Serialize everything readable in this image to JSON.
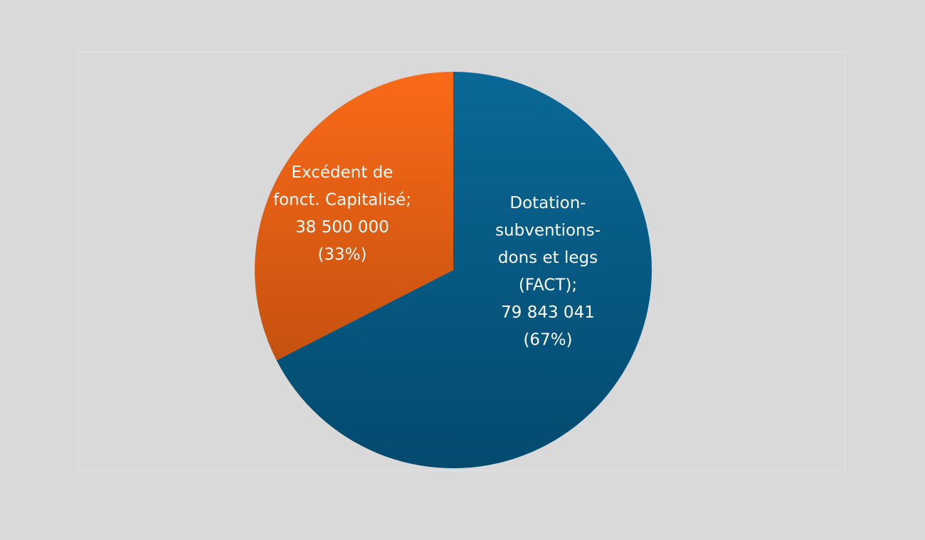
{
  "chart_data": {
    "type": "pie",
    "title": "",
    "slices": [
      {
        "label_lines": [
          "Dotation-",
          "subventions-",
          "dons et legs",
          "(FACT);",
          "79 843 041",
          "(67%)"
        ],
        "category": "Dotation-subventions-dons et legs (FACT)",
        "value": 79843041,
        "percent": 67,
        "color_top": "#0a6896",
        "color_bottom": "#034a6e"
      },
      {
        "label_lines": [
          "Excédent de",
          "fonct. Capitalisé;",
          "38 500 000",
          "(33%)"
        ],
        "category": "Excédent de fonct. Capitalisé",
        "value": 38500000,
        "percent": 33,
        "color_top": "#fa6a18",
        "color_bottom": "#c6510f"
      }
    ],
    "start_angle_deg": 0,
    "direction": "clockwise",
    "legend": "none",
    "colors": {
      "background": "#d9d9d9",
      "plot_border": "#e1e5e8",
      "label_text": "#ffffff"
    }
  }
}
